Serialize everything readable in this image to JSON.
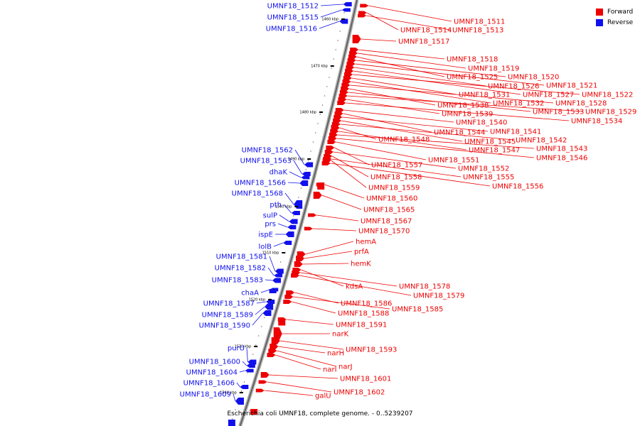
{
  "caption": "Escherichia coli UMNF18, complete genome. - 0..5239207",
  "legend": [
    {
      "label": "Forward",
      "color": "#ee0000"
    },
    {
      "label": "Reverse",
      "color": "#1010ee"
    }
  ],
  "colors": {
    "forward": "#ee0000",
    "reverse": "#1010ee",
    "backbone": "#888888"
  },
  "ticks": [
    "1460 kbp",
    "1470 kbp",
    "1480 kbp",
    "1490 kbp",
    "1500 kbp",
    "1510 kbp",
    "1520 kbp",
    "1530 kbp",
    "1540 kbp"
  ],
  "reverse_genes": [
    "UMNF18_1512",
    "UMNF18_1515",
    "UMNF18_1516",
    "UMNF18_1562",
    "UMNF18_1563",
    "dhaK",
    "UMNF18_1566",
    "UMNF18_1568",
    "pth",
    "sulP",
    "prs",
    "ispE",
    "lolB",
    "UMNF18_1581",
    "UMNF18_1582",
    "UMNF18_1583",
    "chaA",
    "UMNF18_1587",
    "UMNF18_1589",
    "UMNF18_1590",
    "purU",
    "UMNF18_1600",
    "UMNF18_1604",
    "UMNF18_1606",
    "UMNF18_1609"
  ],
  "forward_genes": [
    "UMNF18_1511",
    "UMNF18_1514",
    "UMNF18_1513",
    "UMNF18_1517",
    "UMNF18_1518",
    "UMNF18_1519",
    "UMNF18_1525",
    "UMNF18_1520",
    "UMNF18_1521",
    "UMNF18_1526",
    "UMNF18_1527",
    "UMNF18_1522",
    "UMNF18_1531",
    "UMNF18_1532",
    "UMNF18_1528",
    "UMNF18_1538",
    "UMNF18_1533",
    "UMNF18_1529",
    "UMNF18_1539",
    "UMNF18_1534",
    "UMNF18_1540",
    "UMNF18_1544",
    "UMNF18_1541",
    "UMNF18_1548",
    "UMNF18_1545",
    "UMNF18_1542",
    "UMNF18_1547",
    "UMNF18_1543",
    "UMNF18_1546",
    "UMNF18_1551",
    "UMNF18_1557",
    "UMNF18_1552",
    "UMNF18_1558",
    "UMNF18_1555",
    "UMNF18_1559",
    "UMNF18_1556",
    "UMNF18_1560",
    "UMNF18_1565",
    "UMNF18_1567",
    "UMNF18_1570",
    "hemA",
    "prfA",
    "hemK",
    "kdsA",
    "UMNF18_1578",
    "UMNF18_1579",
    "UMNF18_1586",
    "UMNF18_1585",
    "UMNF18_1588",
    "UMNF18_1591",
    "narK",
    "UMNF18_1593",
    "narH",
    "narJ",
    "narI",
    "UMNF18_1601",
    "UMNF18_1602",
    "galU"
  ]
}
